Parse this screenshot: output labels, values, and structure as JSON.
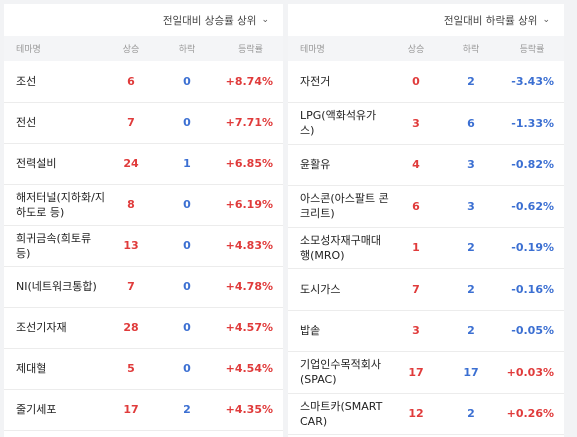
{
  "colors": {
    "up": "#e03b3b",
    "down": "#3b6fd2",
    "header_bg": "#f4f5f7"
  },
  "left": {
    "sort_label": "전일대비 상승률 상위",
    "sort_icon": "chevron-down-icon",
    "columns": {
      "name": "테마명",
      "up": "상승",
      "down": "하락",
      "rate": "등락률"
    },
    "rows": [
      {
        "name": "조선",
        "up": "6",
        "down": "0",
        "rate": "+8.74%"
      },
      {
        "name": "전선",
        "up": "7",
        "down": "0",
        "rate": "+7.71%"
      },
      {
        "name": "전력설비",
        "up": "24",
        "down": "1",
        "rate": "+6.85%"
      },
      {
        "name": "해저터널(지하화/지하도로 등)",
        "up": "8",
        "down": "0",
        "rate": "+6.19%"
      },
      {
        "name": "희귀금속(희토류 등)",
        "up": "13",
        "down": "0",
        "rate": "+4.83%"
      },
      {
        "name": "NI(네트워크통합)",
        "up": "7",
        "down": "0",
        "rate": "+4.78%"
      },
      {
        "name": "조선기자재",
        "up": "28",
        "down": "0",
        "rate": "+4.57%"
      },
      {
        "name": "제대혈",
        "up": "5",
        "down": "0",
        "rate": "+4.54%"
      },
      {
        "name": "줄기세포",
        "up": "17",
        "down": "2",
        "rate": "+4.35%"
      }
    ]
  },
  "right": {
    "sort_label": "전일대비 하락률 상위",
    "sort_icon": "chevron-down-icon",
    "columns": {
      "name": "테마명",
      "up": "상승",
      "down": "하락",
      "rate": "등락률"
    },
    "rows": [
      {
        "name": "자전거",
        "up": "0",
        "down": "2",
        "rate": "-3.43%"
      },
      {
        "name": "LPG(액화석유가스)",
        "up": "3",
        "down": "6",
        "rate": "-1.33%"
      },
      {
        "name": "윤활유",
        "up": "4",
        "down": "3",
        "rate": "-0.82%"
      },
      {
        "name": "아스콘(아스팔트 콘크리트)",
        "up": "6",
        "down": "3",
        "rate": "-0.62%"
      },
      {
        "name": "소모성자재구매대행(MRO)",
        "up": "1",
        "down": "2",
        "rate": "-0.19%"
      },
      {
        "name": "도시가스",
        "up": "7",
        "down": "2",
        "rate": "-0.16%"
      },
      {
        "name": "밥솥",
        "up": "3",
        "down": "2",
        "rate": "-0.05%"
      },
      {
        "name": "기업인수목적회사(SPAC)",
        "up": "17",
        "down": "17",
        "rate": "+0.03%"
      },
      {
        "name": "스마트카(SMART CAR)",
        "up": "12",
        "down": "2",
        "rate": "+0.26%"
      }
    ]
  }
}
